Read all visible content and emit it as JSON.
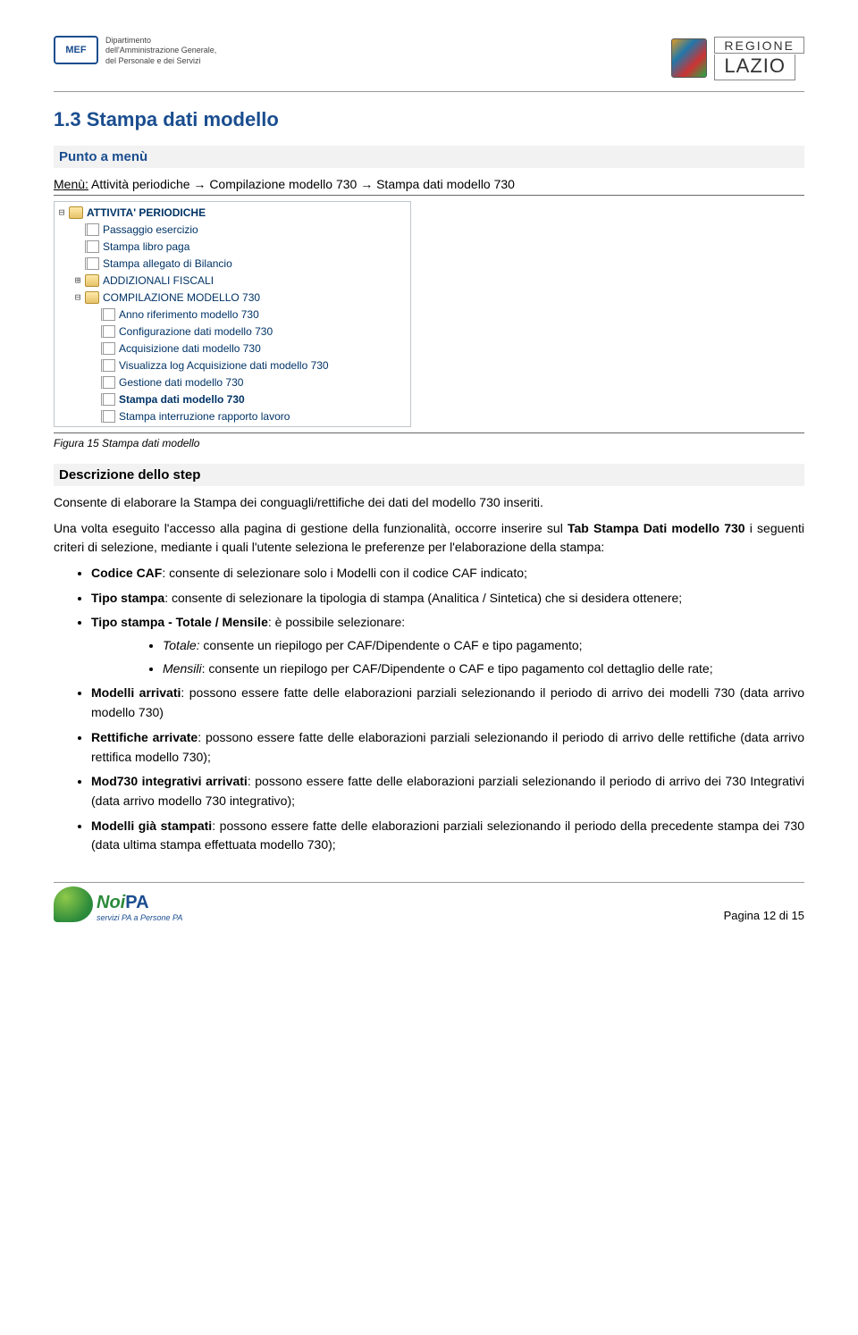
{
  "header": {
    "mef_abbrev": "MEF",
    "mef_line1": "Dipartimento",
    "mef_line2": "dell'Amministrazione Generale,",
    "mef_line3": "del Personale e dei Servizi",
    "regione_top": "REGIONE",
    "regione_bot": "LAZIO"
  },
  "title": "1.3 Stampa dati modello",
  "section_label_punto": "Punto a menù",
  "menu_line_prefix": "Menù:",
  "menu_line_text": " Attività periodiche → Compilazione modello 730 → Stampa dati modello 730",
  "tree": {
    "root": "ATTIVITA' PERIODICHE",
    "items_level1": [
      "Passaggio esercizio",
      "Stampa libro paga",
      "Stampa allegato di Bilancio"
    ],
    "folder1": "ADDIZIONALI FISCALI",
    "folder2": "COMPILAZIONE MODELLO 730",
    "items_level2": [
      "Anno riferimento modello 730",
      "Configurazione dati modello 730",
      "Acquisizione dati modello 730",
      "Visualizza log Acquisizione dati modello 730",
      "Gestione dati modello 730",
      "Stampa dati modello 730",
      "Stampa interruzione rapporto lavoro"
    ],
    "bold_index": 5
  },
  "figure_caption": "Figura 15 Stampa dati modello",
  "desc_label": "Descrizione dello step",
  "paragraphs": {
    "p1": "Consente di elaborare la Stampa dei conguagli/rettifiche dei dati del modello 730 inseriti.",
    "p2_a": "Una volta eseguito l'accesso alla pagina di gestione della funzionalità, occorre inserire sul ",
    "p2_b": "Tab Stampa Dati modello 730",
    "p2_c": " i seguenti criteri di selezione, mediante i quali l'utente seleziona le preferenze per l'elaborazione della stampa:"
  },
  "bullets": [
    {
      "label": "Codice CAF",
      "text": ": consente di selezionare solo i Modelli con il codice CAF indicato;"
    },
    {
      "label": "Tipo stampa",
      "text": ": consente di selezionare la tipologia di stampa (Analitica / Sintetica) che si desidera ottenere;"
    },
    {
      "label": "Tipo stampa - Totale / Mensile",
      "text": ": è possibile selezionare:"
    },
    {
      "label": "Modelli arrivati",
      "text": ": possono essere fatte delle elaborazioni parziali selezionando il periodo di arrivo dei modelli 730 (data arrivo modello 730)"
    },
    {
      "label": "Rettifiche arrivate",
      "text": ": possono essere fatte delle elaborazioni parziali selezionando il periodo di arrivo delle rettifiche (data arrivo rettifica modello 730);"
    },
    {
      "label": "Mod730 integrativi arrivati",
      "text": ": possono essere fatte delle elaborazioni parziali selezionando il periodo di arrivo dei 730 Integrativi (data arrivo modello 730 integrativo);"
    },
    {
      "label": "Modelli già stampati",
      "text": ": possono essere fatte delle elaborazioni parziali selezionando il periodo della precedente stampa dei 730 (data ultima stampa effettuata modello 730);"
    }
  ],
  "sub_bullets": [
    {
      "label": "Totale:",
      "text": " consente un riepilogo per CAF/Dipendente o CAF e tipo pagamento;"
    },
    {
      "label": "Mensili",
      "text": ": consente un riepilogo per CAF/Dipendente o CAF e tipo pagamento col dettaglio delle rate;"
    }
  ],
  "footer": {
    "noi": "Noi",
    "pa": "PA",
    "sub": "servizi PA a Persone PA",
    "page": "Pagina 12 di 15"
  },
  "colors": {
    "heading": "#1a4d8f",
    "tree_text": "#003366",
    "gray_bg": "#f2f2f2"
  }
}
